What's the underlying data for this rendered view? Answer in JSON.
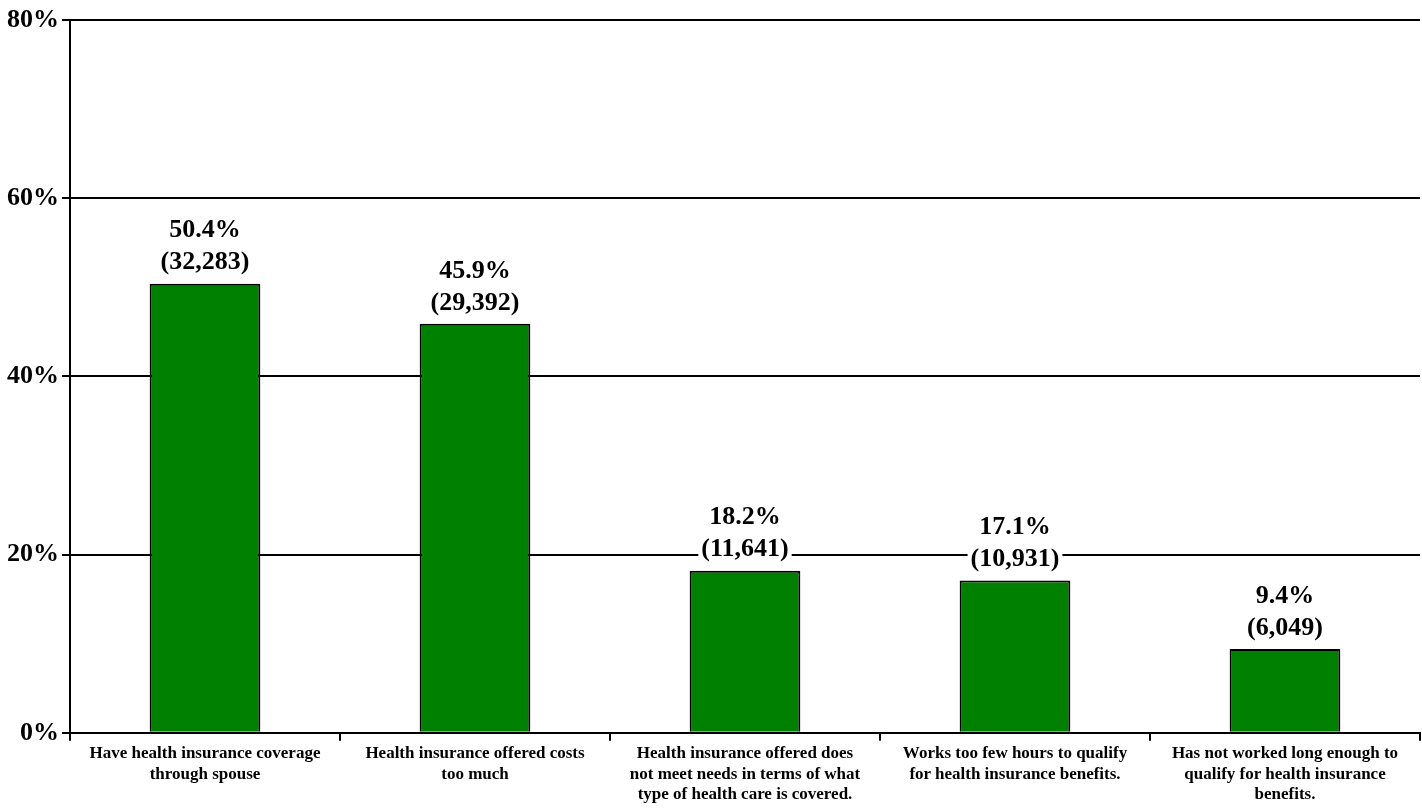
{
  "chart_data": {
    "type": "bar",
    "categories": [
      "Have health insurance coverage through spouse",
      "Health insurance offered costs too much",
      "Health insurance offered does not meet needs in terms of what type of health care is covered.",
      "Works too few hours to qualify for health insurance benefits.",
      "Has not worked long enough to qualify for health insurance benefits."
    ],
    "values": [
      50.4,
      45.9,
      18.2,
      17.1,
      9.4
    ],
    "value_labels": [
      "50.4%\n(32,283)",
      "45.9%\n(29,392)",
      "18.2%\n(11,641)",
      "17.1%\n(10,931)",
      "9.4%\n(6,049)"
    ],
    "color": "#008000",
    "ylim": [
      0,
      80
    ],
    "yticks": [
      {
        "value": 0,
        "label": "0%"
      },
      {
        "value": 20,
        "label": "20%"
      },
      {
        "value": 40,
        "label": "40%"
      },
      {
        "value": 60,
        "label": "60%"
      },
      {
        "value": 80,
        "label": "80%"
      }
    ],
    "grid": "y",
    "legend": false
  }
}
